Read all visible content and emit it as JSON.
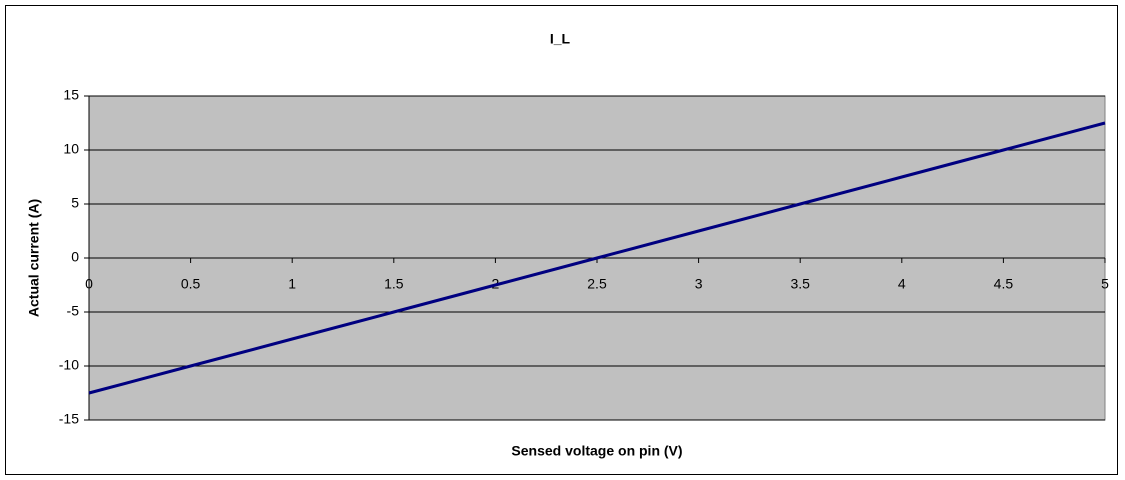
{
  "chart_data": {
    "type": "line",
    "title": "I_L",
    "x_label": "Sensed voltage on pin (V)",
    "y_label": "Actual current (A)",
    "x": [
      0,
      0.5,
      1,
      1.5,
      2,
      2.5,
      3,
      3.5,
      4,
      4.5,
      5
    ],
    "series": [
      {
        "name": "I_L",
        "color": "#000080",
        "values": [
          -12.5,
          -10,
          -7.5,
          -5,
          -2.5,
          0,
          2.5,
          5,
          7.5,
          10,
          12.5
        ]
      }
    ],
    "xlim": [
      0,
      5
    ],
    "xticks": [
      0,
      0.5,
      1,
      1.5,
      2,
      2.5,
      3,
      3.5,
      4,
      4.5,
      5
    ],
    "ylim": [
      -15,
      15
    ],
    "yticks": [
      -15,
      -10,
      -5,
      0,
      5,
      10,
      15
    ],
    "grid": true,
    "plot_background": "#c0c0c0"
  }
}
